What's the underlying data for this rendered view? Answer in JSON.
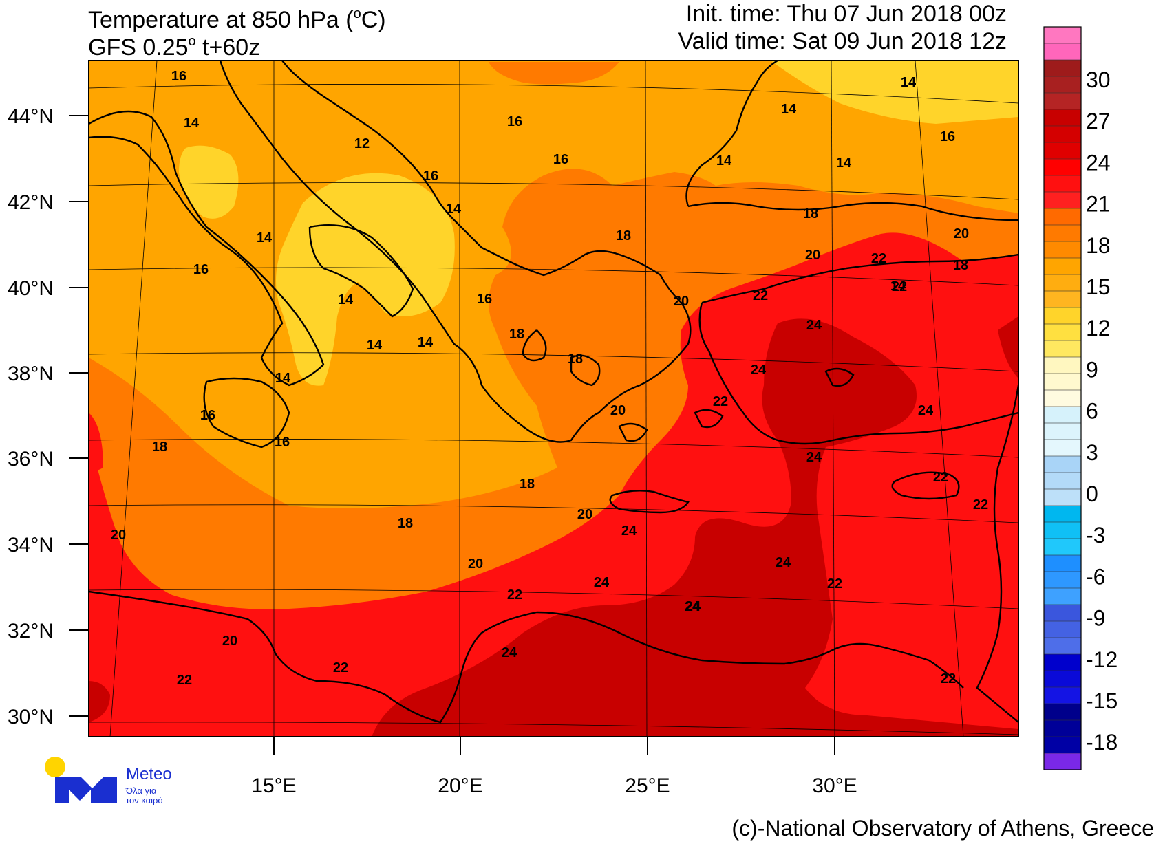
{
  "header": {
    "title_main": "Temperature at 850 hPa (",
    "title_unit_sup": "o",
    "title_unit_end": "C)",
    "model_main": "GFS 0.25",
    "model_sup": "o",
    "model_end": " t+60z",
    "init_time": "Init. time: Thu 07 Jun 2018 00z",
    "valid_time": "Valid time: Sat 09 Jun 2018 12z"
  },
  "axes": {
    "lat_labels": [
      "44°N",
      "42°N",
      "40°N",
      "38°N",
      "36°N",
      "34°N",
      "32°N",
      "30°N"
    ],
    "lon_labels": [
      "15°E",
      "20°E",
      "25°E",
      "30°E"
    ]
  },
  "colorbar": {
    "labels": [
      "30",
      "27",
      "24",
      "21",
      "18",
      "15",
      "12",
      "9",
      "6",
      "3",
      "0",
      "-3",
      "-6",
      "-9",
      "-12",
      "-15",
      "-18"
    ],
    "colors": [
      "#ff77c0",
      "#ff66bb",
      "#9e1b1b",
      "#a82020",
      "#b52424",
      "#c80000",
      "#d40000",
      "#e00000",
      "#ff0000",
      "#ff1010",
      "#ff2020",
      "#ff6a00",
      "#ff7a00",
      "#ff8a00",
      "#ffa500",
      "#ffad10",
      "#ffb520",
      "#ffd42a",
      "#ffe040",
      "#ffe860",
      "#fff7c0",
      "#fff9cf",
      "#fffbe0",
      "#d6f2fb",
      "#dcf4fc",
      "#e4f7fd",
      "#a9d4f7",
      "#b3daf8",
      "#bde0f9",
      "#00b7ef",
      "#10c0f5",
      "#20c8fb",
      "#1e8fff",
      "#2e98ff",
      "#3ea1ff",
      "#3a56dd",
      "#4462e3",
      "#4e6ee9",
      "#0000cc",
      "#0a0ad8",
      "#1414e4",
      "#00008b",
      "#000098",
      "#0000a5",
      "#7a28e8"
    ]
  },
  "contour_labels": [
    "16",
    "14",
    "12",
    "14",
    "16",
    "14",
    "16",
    "16",
    "14",
    "14",
    "16",
    "14",
    "14",
    "16",
    "18",
    "18",
    "20",
    "22",
    "20",
    "18",
    "14",
    "14",
    "16",
    "14",
    "14",
    "18",
    "20",
    "22",
    "22",
    "24",
    "14",
    "18",
    "24",
    "16",
    "22",
    "24",
    "16",
    "18",
    "20",
    "24",
    "22",
    "18",
    "20",
    "22",
    "18",
    "24",
    "24",
    "20",
    "22",
    "24",
    "24",
    "20",
    "22",
    "24",
    "22",
    "20",
    "22",
    "24",
    "22"
  ],
  "credit": "(c)-National Observatory of Athens, Greece",
  "logo": {
    "name": "Meteo",
    "tagline_1": "Όλα για",
    "tagline_2": "τον καιρό"
  }
}
